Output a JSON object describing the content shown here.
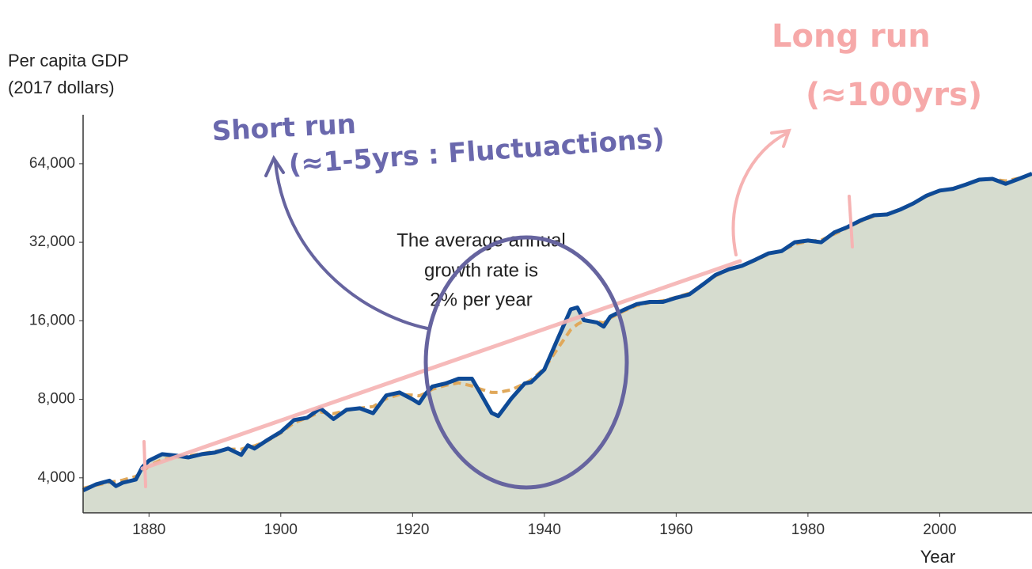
{
  "chart_data": {
    "type": "line",
    "ylabel": [
      "Per capita GDP",
      "(2017 dollars)"
    ],
    "xlabel": "Year",
    "annotation": [
      "The average annual",
      "growth rate is",
      "2% per year"
    ],
    "notes": {
      "short_run": "Short run",
      "short_run_detail": "(≈1-5yrs : Fluctuactions)",
      "long_run": "Long run",
      "long_run_detail": "(≈100yrs)"
    },
    "log_y": true,
    "grid": false,
    "xlim": [
      1870,
      2014
    ],
    "ylim": [
      3000,
      100000
    ],
    "xticks": [
      1880,
      1900,
      1920,
      1940,
      1960,
      1980,
      2000
    ],
    "yticks": [
      {
        "value": 4000,
        "label": "4,000"
      },
      {
        "value": 8000,
        "label": "8,000"
      },
      {
        "value": 16000,
        "label": "16,000"
      },
      {
        "value": 32000,
        "label": "32,000"
      },
      {
        "value": 64000,
        "label": "64,000"
      }
    ],
    "area_color": "#d6dccf",
    "x": [
      1870,
      1872,
      1874,
      1875,
      1876,
      1878,
      1879,
      1880,
      1882,
      1884,
      1886,
      1888,
      1890,
      1892,
      1894,
      1895,
      1896,
      1898,
      1900,
      1902,
      1904,
      1906,
      1908,
      1910,
      1912,
      1914,
      1916,
      1918,
      1920,
      1921,
      1922,
      1923,
      1925,
      1927,
      1929,
      1930,
      1932,
      1933,
      1935,
      1937,
      1938,
      1940,
      1942,
      1944,
      1945,
      1946,
      1948,
      1949,
      1950,
      1952,
      1954,
      1956,
      1958,
      1960,
      1962,
      1964,
      1966,
      1968,
      1970,
      1972,
      1974,
      1976,
      1978,
      1980,
      1982,
      1984,
      1986,
      1988,
      1990,
      1992,
      1994,
      1996,
      1998,
      2000,
      2002,
      2004,
      2006,
      2008,
      2010,
      2012,
      2014
    ],
    "series": [
      {
        "color": "#e0a85a",
        "dashed": true,
        "values": [
          3650,
          3750,
          3850,
          3880,
          3920,
          4050,
          4200,
          4450,
          4700,
          4800,
          4850,
          4950,
          5050,
          5150,
          5150,
          5250,
          5300,
          5550,
          5950,
          6500,
          6800,
          7150,
          7050,
          7250,
          7400,
          7500,
          8050,
          8350,
          8300,
          8250,
          8450,
          8750,
          9050,
          9250,
          9000,
          8800,
          8500,
          8500,
          8700,
          9200,
          9500,
          10500,
          12500,
          14800,
          15500,
          16000,
          15900,
          15700,
          16400,
          17400,
          18300,
          18800,
          19100,
          19700,
          20400,
          22000,
          23800,
          25100,
          26000,
          27300,
          28800,
          29700,
          31400,
          32300,
          32600,
          34400,
          36400,
          38500,
          40300,
          41100,
          42800,
          45000,
          48000,
          50300,
          51500,
          53300,
          55400,
          55800,
          55000,
          56300,
          58400
        ]
      },
      {
        "color": "#0e4a96",
        "dashed": false,
        "values": [
          3580,
          3780,
          3900,
          3720,
          3830,
          3940,
          4400,
          4660,
          4930,
          4870,
          4790,
          4930,
          5000,
          5180,
          4900,
          5330,
          5180,
          5590,
          6000,
          6660,
          6800,
          7390,
          6720,
          7300,
          7390,
          7080,
          8280,
          8500,
          8000,
          7720,
          8420,
          8960,
          9200,
          9600,
          9600,
          8700,
          7100,
          6900,
          8060,
          9200,
          9300,
          10400,
          13600,
          17700,
          18000,
          16100,
          15750,
          15200,
          16600,
          17600,
          18520,
          18900,
          18900,
          19600,
          20200,
          22000,
          24000,
          25200,
          26000,
          27400,
          29000,
          29600,
          32000,
          32500,
          32000,
          34900,
          36600,
          38800,
          40600,
          40900,
          42700,
          45100,
          48300,
          50500,
          51300,
          53300,
          55600,
          56000,
          53600,
          56000,
          58600
        ]
      }
    ]
  }
}
